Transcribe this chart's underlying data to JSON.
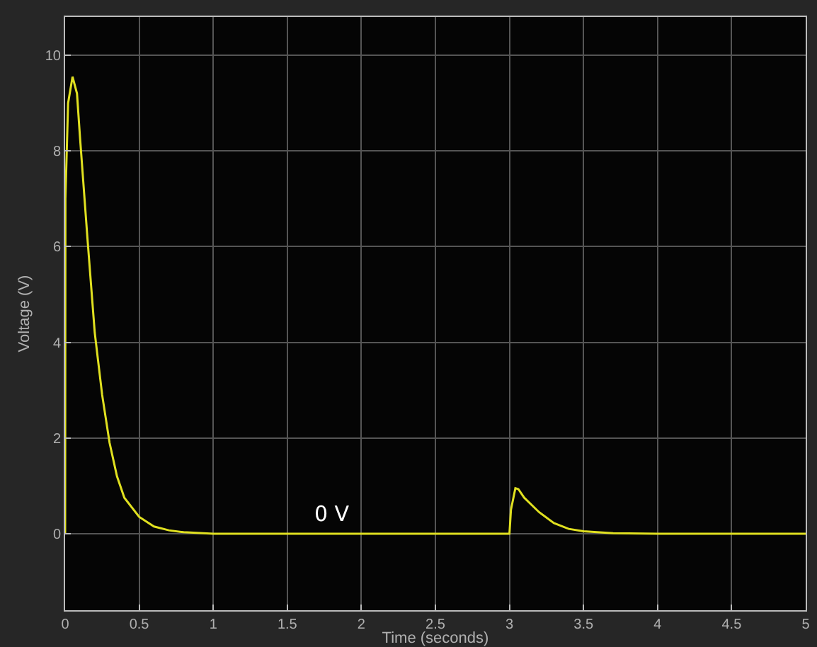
{
  "chart_data": {
    "type": "line",
    "xlabel": "Time (seconds)",
    "ylabel": "Voltage (V)",
    "x": [
      0,
      0.002,
      0.02,
      0.05,
      0.08,
      0.1,
      0.15,
      0.2,
      0.25,
      0.3,
      0.35,
      0.4,
      0.5,
      0.6,
      0.7,
      0.8,
      1,
      2,
      3,
      3.01,
      3.04,
      3.06,
      3.1,
      3.2,
      3.3,
      3.4,
      3.5,
      3.7,
      4,
      5
    ],
    "series": [
      {
        "color": "#e0e020",
        "values": [
          0,
          7,
          9,
          9.55,
          9.2,
          8.3,
          6.2,
          4.2,
          2.9,
          1.9,
          1.2,
          0.75,
          0.35,
          0.15,
          0.07,
          0.03,
          0,
          0,
          0,
          0.5,
          0.95,
          0.93,
          0.75,
          0.45,
          0.22,
          0.1,
          0.05,
          0.01,
          0,
          0
        ]
      }
    ],
    "xlim": [
      0,
      5
    ],
    "xticks": [
      0,
      0.5,
      1,
      1.5,
      2,
      2.5,
      3,
      3.5,
      4,
      4.5,
      5
    ],
    "ylim": [
      -1.6,
      10.8
    ],
    "yticks": [
      0,
      2,
      4,
      6,
      8,
      10
    ],
    "grid": true,
    "marker": "none",
    "line_style": "solid",
    "annotations": [
      {
        "text": "0 V",
        "x": 1.8,
        "y": 0
      }
    ]
  }
}
